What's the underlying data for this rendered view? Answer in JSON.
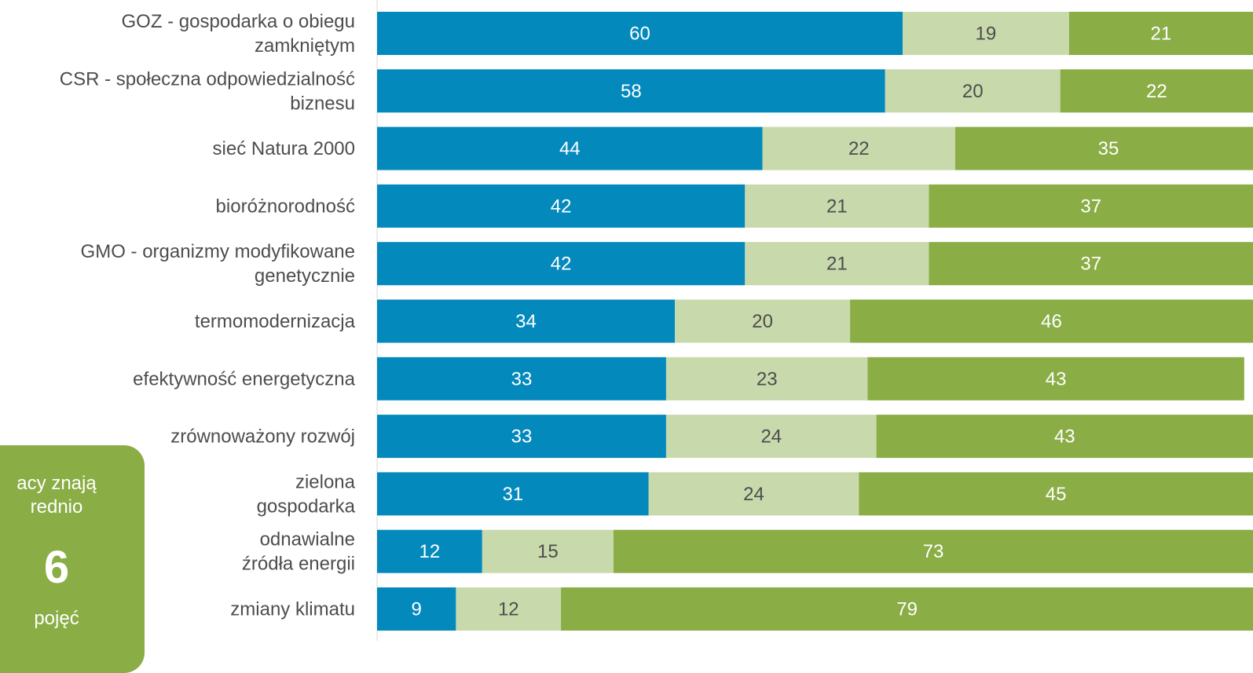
{
  "chart_data": {
    "type": "bar",
    "orientation": "horizontal",
    "stacked": true,
    "grid": false,
    "categories": [
      "GOZ - gospodarka o obiegu zamkniętym",
      "CSR - społeczna odpowiedzialność biznesu",
      "sieć Natura 2000",
      "bioróżnorodność",
      "GMO - organizmy modyfikowane genetycznie",
      "termomodernizacja",
      "efektywność energetyczna",
      "zrównoważony rozwój",
      "zielona gospodarka",
      "odnawialne źródła energii",
      "zmiany klimatu"
    ],
    "category_lines": [
      [
        "GOZ - gospodarka o obiegu",
        "zamkniętym"
      ],
      [
        "CSR - społeczna odpowiedzialność",
        "biznesu"
      ],
      [
        "sieć Natura 2000"
      ],
      [
        "bioróżnorodność"
      ],
      [
        "GMO - organizmy modyfikowane",
        "genetycznie"
      ],
      [
        "termomodernizacja"
      ],
      [
        "efektywność energetyczna"
      ],
      [
        "zrównoważony rozwój"
      ],
      [
        "zielona",
        "gospodarka"
      ],
      [
        "odnawialne",
        "źródła energii"
      ],
      [
        "zmiany klimatu"
      ]
    ],
    "series": [
      {
        "values": [
          60,
          58,
          44,
          42,
          42,
          34,
          33,
          33,
          31,
          12,
          9
        ],
        "color": "#0489bd",
        "label_color": "#ffffff"
      },
      {
        "values": [
          19,
          20,
          22,
          21,
          21,
          20,
          23,
          24,
          24,
          15,
          12
        ],
        "color": "#c8d9ac",
        "label_color": "#4d4d4d"
      },
      {
        "values": [
          21,
          22,
          35,
          37,
          37,
          46,
          43,
          43,
          45,
          73,
          79
        ],
        "color": "#8aad45",
        "label_color": "#ffffff"
      }
    ],
    "xlim": [
      0,
      100
    ]
  },
  "callout": {
    "line1": "acy znają",
    "line2": "rednio",
    "number": "6",
    "line3": "pojęć",
    "color": "#8aad45"
  },
  "colors": {
    "label_text": "#4d4d4d",
    "axis_line": "#d9d9d9"
  }
}
